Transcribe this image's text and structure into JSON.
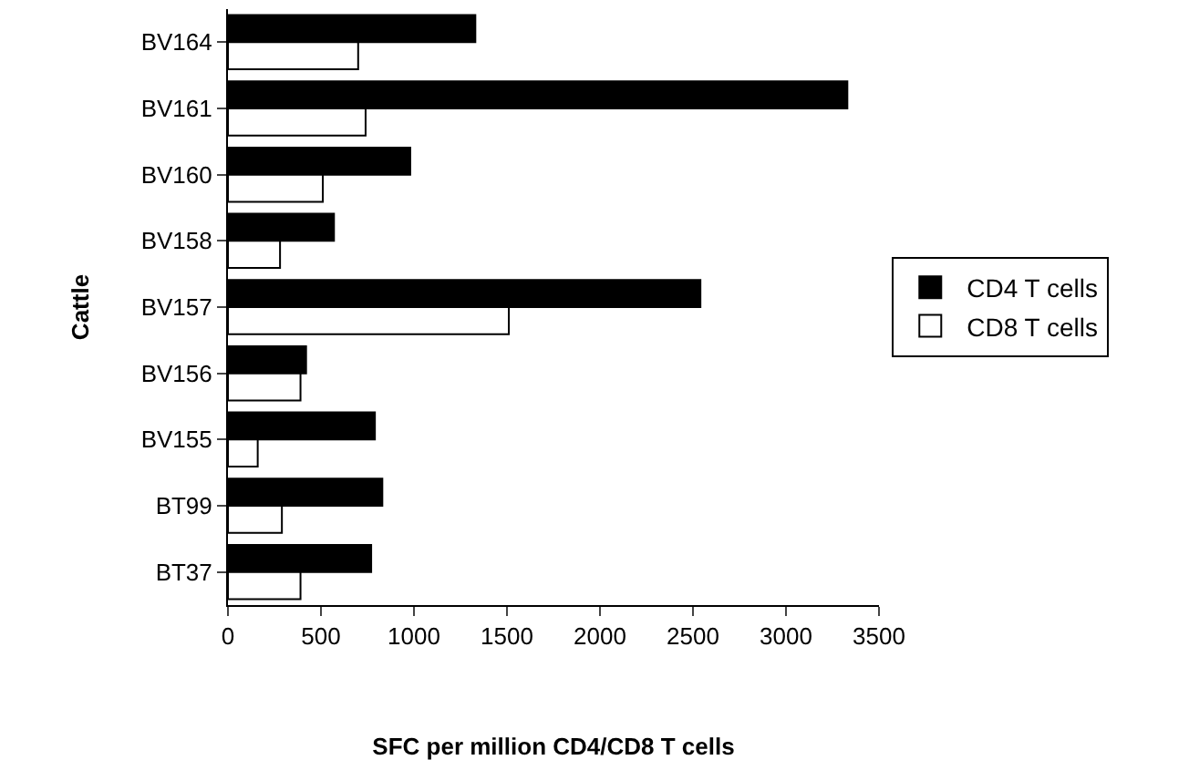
{
  "chart_data": {
    "type": "bar",
    "orientation": "horizontal",
    "xlabel": "SFC per million CD4/CD8 T cells",
    "ylabel": "Cattle",
    "categories": [
      "BV164",
      "BV161",
      "BV160",
      "BV158",
      "BV157",
      "BV156",
      "BV155",
      "BT99",
      "BT37"
    ],
    "series": [
      {
        "name": "CD4 T cells",
        "color": "#000000",
        "values": [
          1330,
          3330,
          980,
          570,
          2540,
          420,
          790,
          830,
          770
        ]
      },
      {
        "name": "CD8 T cells",
        "color": "#ffffff",
        "values": [
          700,
          740,
          510,
          280,
          1510,
          390,
          160,
          290,
          390
        ]
      }
    ],
    "xlim": [
      0,
      3500
    ],
    "xticks": [
      0,
      500,
      1000,
      1500,
      2000,
      2500,
      3000,
      3500
    ],
    "grid": false,
    "legend": "right"
  }
}
